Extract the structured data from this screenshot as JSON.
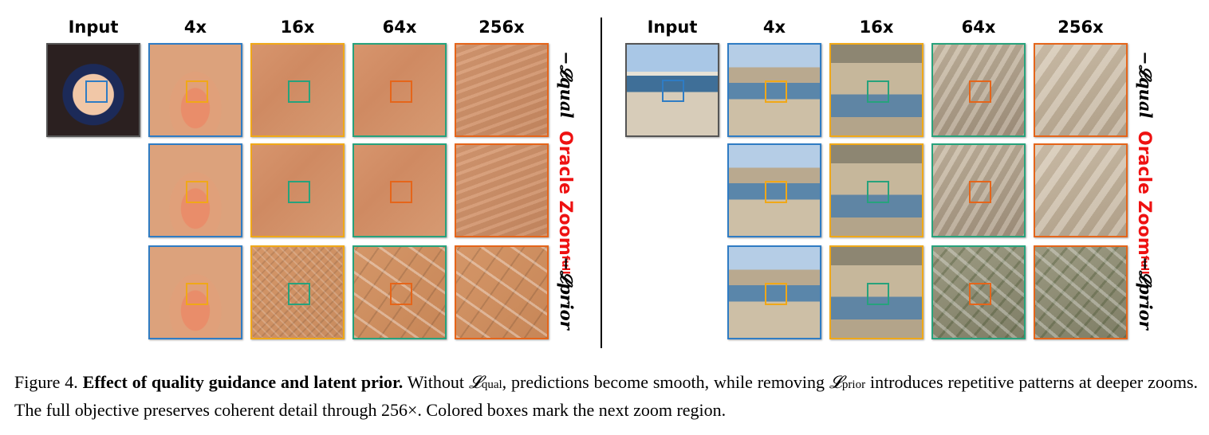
{
  "columns": [
    "Input",
    "4x",
    "16x",
    "64x",
    "256x"
  ],
  "row_labels": {
    "top": "−𝓛qual",
    "oracle_main": "Oracle Zoom",
    "oracle_sub": "full",
    "bottom": "−𝓛prior"
  },
  "colors": {
    "blue": "#2f7cc4",
    "yellow": "#f0a818",
    "green": "#27a27c",
    "orange": "#e5651a",
    "oracle_red": "#ee1111"
  },
  "caption": {
    "figure": "Figure 4.",
    "title": "Effect of quality guidance and latent prior.",
    "t1": "Without",
    "l_qual": "𝓛",
    "l_qual_sub": "qual",
    "t2": ", predictions become smooth, while removing",
    "l_prior": "𝓛",
    "l_prior_sub": "prior",
    "t3": "introduces repetitive patterns at deeper zooms. The full objective preserves coherent detail through",
    "zoom": "256×",
    "t4": ". Colored boxes mark the next zoom region."
  }
}
